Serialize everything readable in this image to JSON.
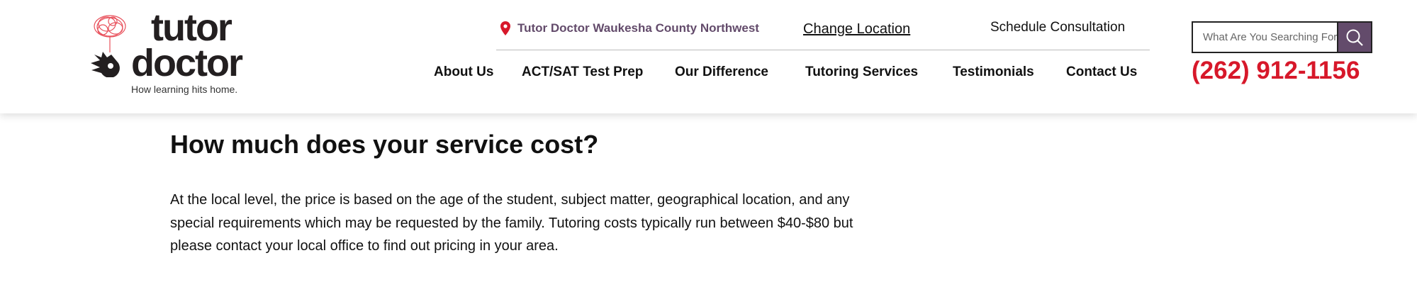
{
  "logo": {
    "line1": "tutor",
    "line2": "doctor",
    "tagline": "How learning hits home.",
    "colors": {
      "brain": "#e8505b",
      "text": "#231f20"
    }
  },
  "location": {
    "icon": "map-pin-icon",
    "name": "Tutor Doctor Waukesha County Northwest",
    "change_label": "Change Location"
  },
  "schedule_label": "Schedule Consultation",
  "nav": [
    "About Us",
    "ACT/SAT Test Prep",
    "Our Difference",
    "Tutoring Services",
    "Testimonials",
    "Contact Us"
  ],
  "search": {
    "placeholder": "What Are You Searching For?",
    "value": "",
    "icon": "search-icon"
  },
  "phone": "(262) 912-1156",
  "colors": {
    "accent": "#634b6b",
    "phone": "#d7182a"
  },
  "main": {
    "heading": "How much does your service cost?",
    "paragraph": "At the local level, the price is based on the age of the student, subject matter, geographical location, and any special requirements which may be requested by the family. Tutoring costs typically run between $40-$80 but please contact your local office to find out pricing in your area."
  }
}
